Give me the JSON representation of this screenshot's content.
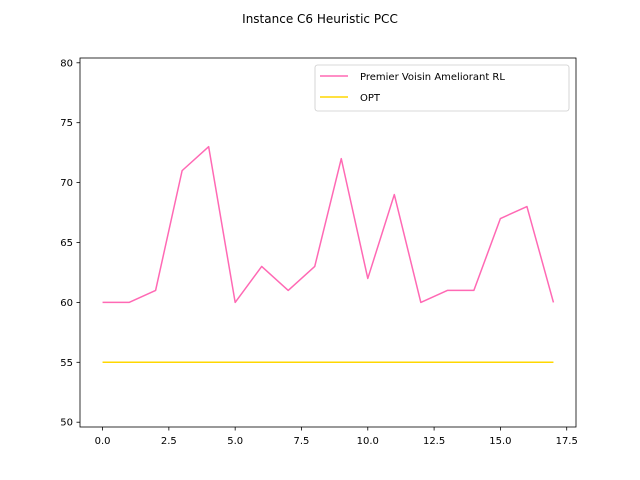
{
  "chart_data": {
    "type": "line",
    "title": "Instance C6 Heuristic PCC",
    "xlabel": "",
    "ylabel": "",
    "xlim": [
      -0.85,
      17.85
    ],
    "ylim": [
      49.6,
      80.4
    ],
    "xticks": [
      0.0,
      2.5,
      5.0,
      7.5,
      10.0,
      12.5,
      15.0,
      17.5
    ],
    "xtick_labels": [
      "0.0",
      "2.5",
      "5.0",
      "7.5",
      "10.0",
      "12.5",
      "15.0",
      "17.5"
    ],
    "yticks": [
      50,
      55,
      60,
      65,
      70,
      75,
      80
    ],
    "ytick_labels": [
      "50",
      "55",
      "60",
      "65",
      "70",
      "75",
      "80"
    ],
    "grid": false,
    "legend_position": "top-right",
    "series": [
      {
        "name": "Premier Voisin Ameliorant RL",
        "color": "#ff69b4",
        "x": [
          0,
          1,
          2,
          3,
          4,
          5,
          6,
          7,
          8,
          9,
          10,
          11,
          12,
          13,
          14,
          15,
          16,
          17
        ],
        "values": [
          60,
          60,
          61,
          71,
          73,
          60,
          63,
          61,
          63,
          72,
          62,
          69,
          60,
          61,
          61,
          67,
          68,
          60
        ]
      },
      {
        "name": "OPT",
        "color": "#ffd700",
        "x": [
          0,
          1,
          2,
          3,
          4,
          5,
          6,
          7,
          8,
          9,
          10,
          11,
          12,
          13,
          14,
          15,
          16,
          17
        ],
        "values": [
          55,
          55,
          55,
          55,
          55,
          55,
          55,
          55,
          55,
          55,
          55,
          55,
          55,
          55,
          55,
          55,
          55,
          55
        ]
      }
    ]
  }
}
